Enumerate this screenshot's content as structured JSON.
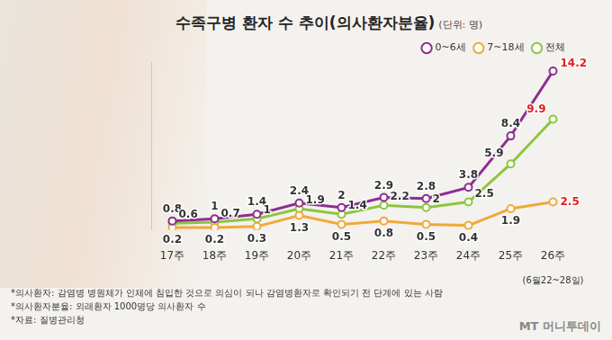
{
  "chart_data": {
    "type": "line",
    "title": "수족구병 환자 수 추이(의사환자분율)",
    "subtitle": "(단위: 명)",
    "categories": [
      "17주",
      "18주",
      "19주",
      "20주",
      "21주",
      "22주",
      "23주",
      "24주",
      "25주",
      "26주"
    ],
    "series": [
      {
        "name": "0~6세",
        "color": "#8e2d91",
        "values": [
          0.8,
          1.0,
          1.4,
          2.4,
          2.0,
          2.9,
          2.8,
          3.8,
          8.4,
          14.2
        ]
      },
      {
        "name": "7~18세",
        "color": "#f0a93b",
        "values": [
          0.2,
          0.2,
          0.3,
          1.3,
          0.5,
          0.8,
          0.5,
          0.4,
          1.9,
          2.5
        ]
      },
      {
        "name": "전체",
        "color": "#8cc63f",
        "values": [
          0.6,
          0.7,
          1.0,
          1.9,
          1.4,
          2.2,
          2.0,
          2.5,
          5.9,
          9.9
        ]
      }
    ],
    "ylim": [
      0,
      15
    ],
    "grid": false,
    "legend": "top-right",
    "data_labels": true,
    "tick_labels": "x",
    "marker": "circle",
    "annotations": [
      {
        "text": "(6월22~28일)",
        "category": "26주"
      }
    ],
    "notes": [
      "*의사환자: 감염병 병원체가 인체에 침입한 것으로 의심이 되나 감염병환자로 확인되기 전 단계에 있는 사람",
      "*의사환자분율: 외래환자 1000명당 의사환자 수",
      "*자료: 질병관리청"
    ],
    "credit": "MT 머니투데이"
  }
}
